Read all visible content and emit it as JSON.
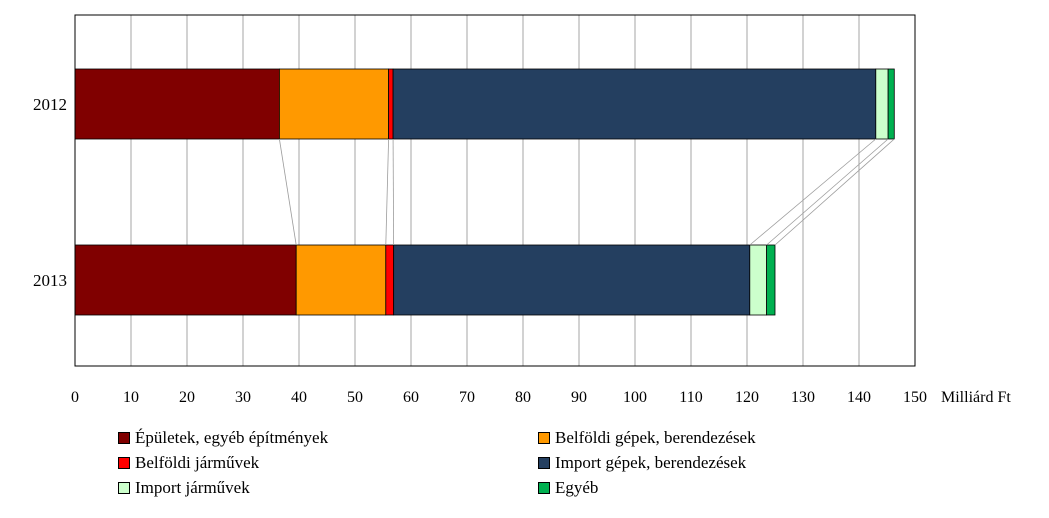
{
  "chart_data": {
    "type": "bar",
    "orientation": "horizontal",
    "stacked": true,
    "categories": [
      "2012",
      "2013"
    ],
    "series": [
      {
        "name": "Épületek, egyéb építmények",
        "color": "#800000",
        "values": [
          36.5,
          39.5
        ]
      },
      {
        "name": "Belföldi gépek, berendezések",
        "color": "#ff9900",
        "values": [
          19.5,
          16.0
        ]
      },
      {
        "name": "Belföldi járművek",
        "color": "#ff0000",
        "values": [
          0.8,
          1.4
        ]
      },
      {
        "name": "Import gépek, berendezések",
        "color": "#243f60",
        "values": [
          86.2,
          63.6
        ]
      },
      {
        "name": "Import járművek",
        "color": "#ccffcc",
        "values": [
          2.2,
          3.0
        ]
      },
      {
        "name": "Egyéb",
        "color": "#00b050",
        "values": [
          1.1,
          1.5
        ]
      }
    ],
    "xlim": [
      0,
      150
    ],
    "xticks": [
      0,
      10,
      20,
      30,
      40,
      50,
      60,
      70,
      80,
      90,
      100,
      110,
      120,
      130,
      140,
      150
    ],
    "xlabel": "Milliárd Ft",
    "grid": true,
    "legend_position": "bottom"
  }
}
